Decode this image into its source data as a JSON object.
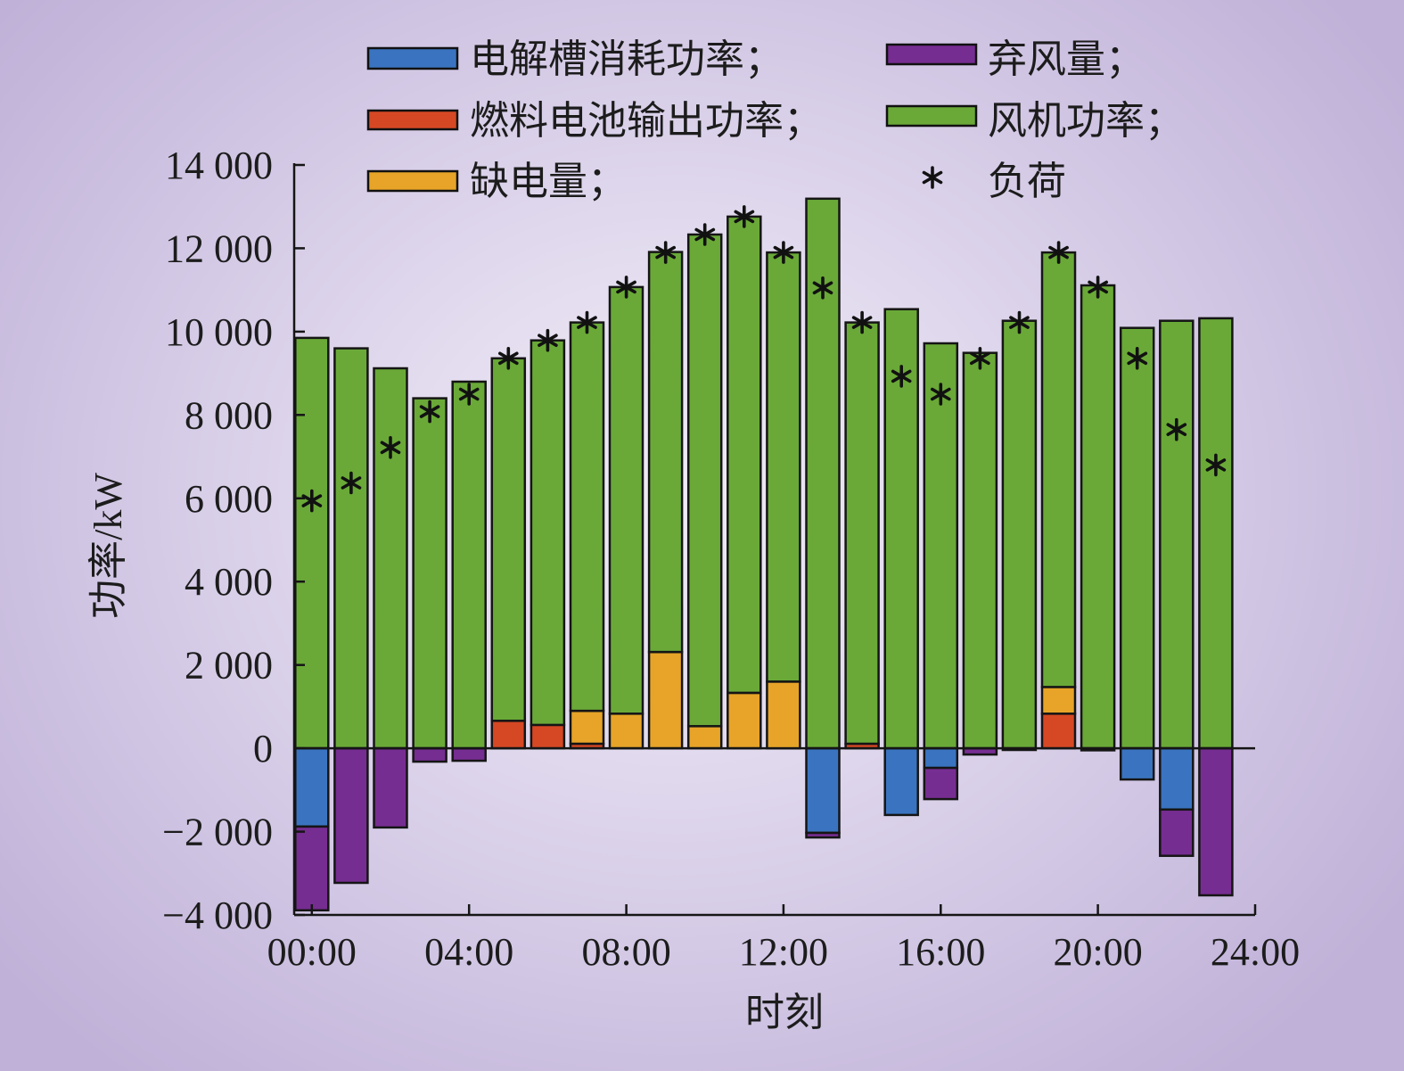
{
  "chart_data": {
    "type": "bar",
    "stacked": true,
    "x": [
      0,
      1,
      2,
      3,
      4,
      5,
      6,
      7,
      8,
      9,
      10,
      11,
      12,
      13,
      14,
      15,
      16,
      17,
      18,
      19,
      20,
      21,
      22,
      23
    ],
    "xlim": [
      -0.45,
      24
    ],
    "ylim": [
      -4000,
      14000
    ],
    "x_ticks": [
      0,
      4,
      8,
      12,
      16,
      20,
      24
    ],
    "x_tick_labels": [
      "00:00",
      "04:00",
      "08:00",
      "12:00",
      "16:00",
      "20:00",
      "24:00"
    ],
    "y_ticks": [
      14000,
      12000,
      10000,
      8000,
      6000,
      4000,
      2000,
      0,
      -2000,
      -4000
    ],
    "y_tick_labels": [
      "14 000",
      "12 000",
      "10 000",
      "8 000",
      "6 000",
      "4 000",
      "2 000",
      "0",
      "−2 000",
      "−4 000"
    ],
    "xlabel": "时刻",
    "ylabel": "功率/kW",
    "grid": false,
    "legend_position": "top",
    "series": [
      {
        "name": "电解槽消耗功率；",
        "type": "bar",
        "color": "#3a74c0",
        "values": [
          -1880,
          0,
          0,
          0,
          0,
          0,
          0,
          0,
          0,
          0,
          0,
          0,
          0,
          -2030,
          0,
          -1600,
          -470,
          0,
          0,
          0,
          0,
          -750,
          -1470,
          0
        ]
      },
      {
        "name": "弃风量；",
        "type": "bar",
        "color": "#762d91",
        "values": [
          -2010,
          -3230,
          -1900,
          -320,
          -300,
          0,
          0,
          0,
          0,
          0,
          0,
          0,
          0,
          -110,
          0,
          0,
          -750,
          -150,
          -40,
          0,
          -50,
          0,
          -1110,
          -3530
        ]
      },
      {
        "name": "燃料电池输出功率；",
        "type": "bar",
        "color": "#d64824",
        "values": [
          0,
          0,
          0,
          0,
          0,
          660,
          560,
          110,
          0,
          0,
          0,
          0,
          0,
          0,
          110,
          0,
          0,
          0,
          0,
          830,
          0,
          0,
          0,
          0
        ]
      },
      {
        "name": "风机功率；",
        "type": "bar",
        "color": "#6aa938",
        "values": [
          9850,
          9600,
          9120,
          8400,
          8800,
          8700,
          9230,
          9320,
          10240,
          9600,
          11800,
          11430,
          10300,
          13190,
          10110,
          10540,
          9720,
          9490,
          10260,
          10430,
          11110,
          10090,
          10260,
          10320
        ]
      },
      {
        "name": "缺电量；",
        "type": "bar",
        "color": "#e7a428",
        "values": [
          0,
          0,
          0,
          0,
          0,
          0,
          0,
          790,
          830,
          2310,
          530,
          1330,
          1600,
          0,
          0,
          0,
          0,
          0,
          0,
          640,
          0,
          0,
          0,
          0
        ]
      },
      {
        "name": "负荷",
        "type": "scatter",
        "marker": "asterisk",
        "color": "#111111",
        "values": [
          5940,
          6370,
          7220,
          8080,
          8500,
          9360,
          9790,
          10220,
          11070,
          11900,
          12330,
          12760,
          11900,
          11050,
          10220,
          8930,
          8500,
          9360,
          10220,
          11900,
          11070,
          9360,
          7650,
          6800
        ]
      }
    ]
  }
}
